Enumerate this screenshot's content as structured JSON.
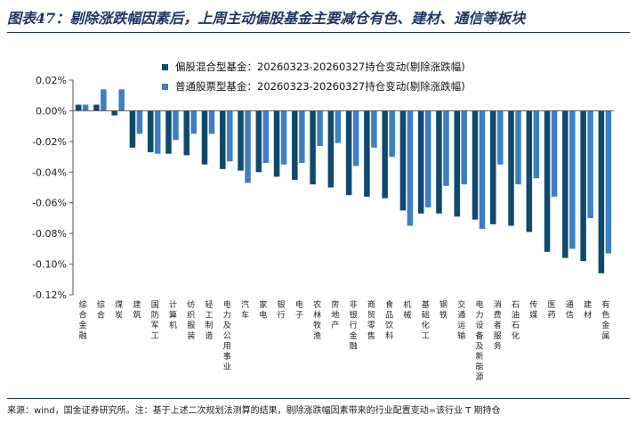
{
  "title": "图表47：剔除涨跌幅因素后，上周主动偏股基金主要减仓有色、建材、通信等板块",
  "footnote": "来源：wind，国金证券研究所。注：基于上述二次规划法测算的结果，剔除涨跌幅因素带来的行业配置变动=该行业 T 期持仓",
  "colors": {
    "series1": "#0e4a6e",
    "series2": "#3d7fc2",
    "axis": "#555555",
    "title": "#1f3864"
  },
  "chart_data": {
    "type": "bar",
    "title": "",
    "xlabel": "",
    "ylabel": "",
    "ylim": [
      -0.12,
      0.02
    ],
    "yticks": [
      0.02,
      0.0,
      -0.02,
      -0.04,
      -0.06,
      -0.08,
      -0.1,
      -0.12
    ],
    "ytick_labels": [
      "0.02%",
      "0.00%",
      "-0.02%",
      "-0.04%",
      "-0.06%",
      "-0.08%",
      "-0.10%",
      "-0.12%"
    ],
    "unit": "%",
    "legend_position": "top",
    "grid": false,
    "categories": [
      "综合金融",
      "综合",
      "煤炭",
      "建筑",
      "国防军工",
      "计算机",
      "纺织服装",
      "轻工制造",
      "电力及公用事业",
      "汽车",
      "家电",
      "银行",
      "电子",
      "农林牧渔",
      "房地产",
      "非银行金融",
      "商贸零售",
      "食品饮料",
      "机械",
      "基础化工",
      "钢铁",
      "交通运输",
      "电力设备及新能源",
      "消费者服务",
      "石油石化",
      "传媒",
      "医药",
      "通信",
      "建材",
      "有色金属"
    ],
    "series": [
      {
        "name": "偏股混合型基金：20260323-20260327持仓变动(剔除涨跌幅)",
        "values": [
          0.004,
          0.004,
          -0.003,
          -0.024,
          -0.027,
          -0.028,
          -0.029,
          -0.035,
          -0.038,
          -0.039,
          -0.04,
          -0.043,
          -0.045,
          -0.048,
          -0.05,
          -0.055,
          -0.056,
          -0.057,
          -0.065,
          -0.067,
          -0.067,
          -0.069,
          -0.071,
          -0.074,
          -0.075,
          -0.079,
          -0.092,
          -0.096,
          -0.098,
          -0.106
        ]
      },
      {
        "name": "普通股票型基金：20260323-20260327持仓变动(剔除涨跌幅)",
        "values": [
          0.004,
          0.014,
          0.014,
          -0.015,
          -0.028,
          -0.019,
          -0.015,
          -0.015,
          -0.033,
          -0.047,
          -0.034,
          -0.035,
          -0.034,
          -0.023,
          -0.021,
          -0.036,
          -0.024,
          -0.03,
          -0.075,
          -0.063,
          -0.049,
          -0.048,
          -0.077,
          -0.035,
          -0.048,
          -0.044,
          -0.056,
          -0.09,
          -0.07,
          -0.093
        ]
      }
    ]
  }
}
